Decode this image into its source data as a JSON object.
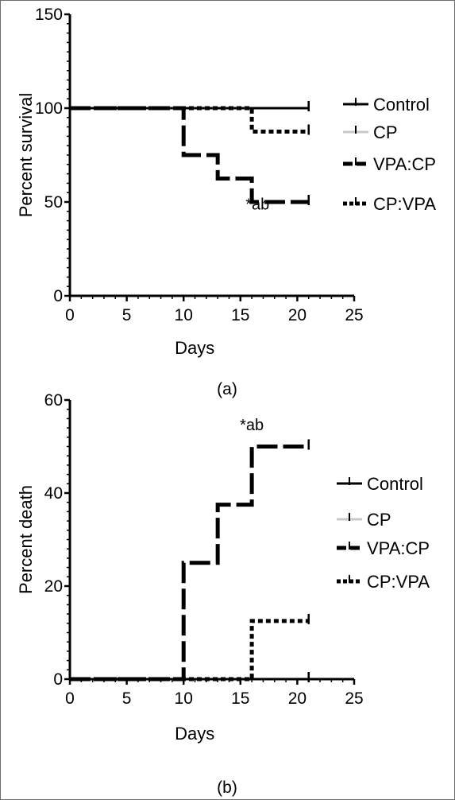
{
  "chart_data": [
    {
      "type": "line",
      "panel_label": "(a)",
      "xlabel": "Days",
      "ylabel": "Percent survival",
      "xlim": [
        0,
        25
      ],
      "ylim": [
        0,
        150
      ],
      "xticks": [
        "0",
        "5",
        "10",
        "15",
        "20",
        "25"
      ],
      "yticks": [
        "0",
        "50",
        "100",
        "150"
      ],
      "legend_position": "right",
      "annotation": {
        "text": "*ab",
        "x": 16.5,
        "y": 46
      },
      "series": [
        {
          "name": "Control",
          "style": "solid",
          "color": "#000000",
          "x": [
            0,
            21
          ],
          "y": [
            100,
            100
          ]
        },
        {
          "name": "CP",
          "style": "solid",
          "color": "#c8c8c8",
          "x": [
            0,
            21
          ],
          "y": [
            100,
            100
          ]
        },
        {
          "name": "VPA:CP",
          "style": "dashed",
          "color": "#000000",
          "x": [
            0,
            10,
            10,
            13,
            13,
            16,
            16,
            21
          ],
          "y": [
            100,
            100,
            75,
            75,
            62.5,
            62.5,
            50,
            50
          ]
        },
        {
          "name": "CP:VPA",
          "style": "dotted",
          "color": "#000000",
          "x": [
            0,
            16,
            16,
            21
          ],
          "y": [
            100,
            100,
            87.5,
            87.5
          ]
        }
      ]
    },
    {
      "type": "line",
      "panel_label": "(b)",
      "xlabel": "Days",
      "ylabel": "Percent death",
      "xlim": [
        0,
        25
      ],
      "ylim": [
        0,
        60
      ],
      "xticks": [
        "0",
        "5",
        "10",
        "15",
        "20",
        "25"
      ],
      "yticks": [
        "0",
        "20",
        "40",
        "60"
      ],
      "legend_position": "right",
      "annotation": {
        "text": "*ab",
        "x": 16,
        "y": 53.5
      },
      "series": [
        {
          "name": "Control",
          "style": "solid",
          "color": "#000000",
          "x": [
            0,
            21
          ],
          "y": [
            0,
            0
          ]
        },
        {
          "name": "CP",
          "style": "solid",
          "color": "#c8c8c8",
          "x": [
            0,
            21
          ],
          "y": [
            0,
            0
          ]
        },
        {
          "name": "VPA:CP",
          "style": "dashed",
          "color": "#000000",
          "x": [
            0,
            10,
            10,
            13,
            13,
            16,
            16,
            21
          ],
          "y": [
            0,
            0,
            25,
            25,
            37.5,
            37.5,
            50,
            50
          ]
        },
        {
          "name": "CP:VPA",
          "style": "dotted",
          "color": "#000000",
          "x": [
            0,
            16,
            16,
            21
          ],
          "y": [
            0,
            0,
            12.5,
            12.5
          ]
        }
      ]
    }
  ]
}
